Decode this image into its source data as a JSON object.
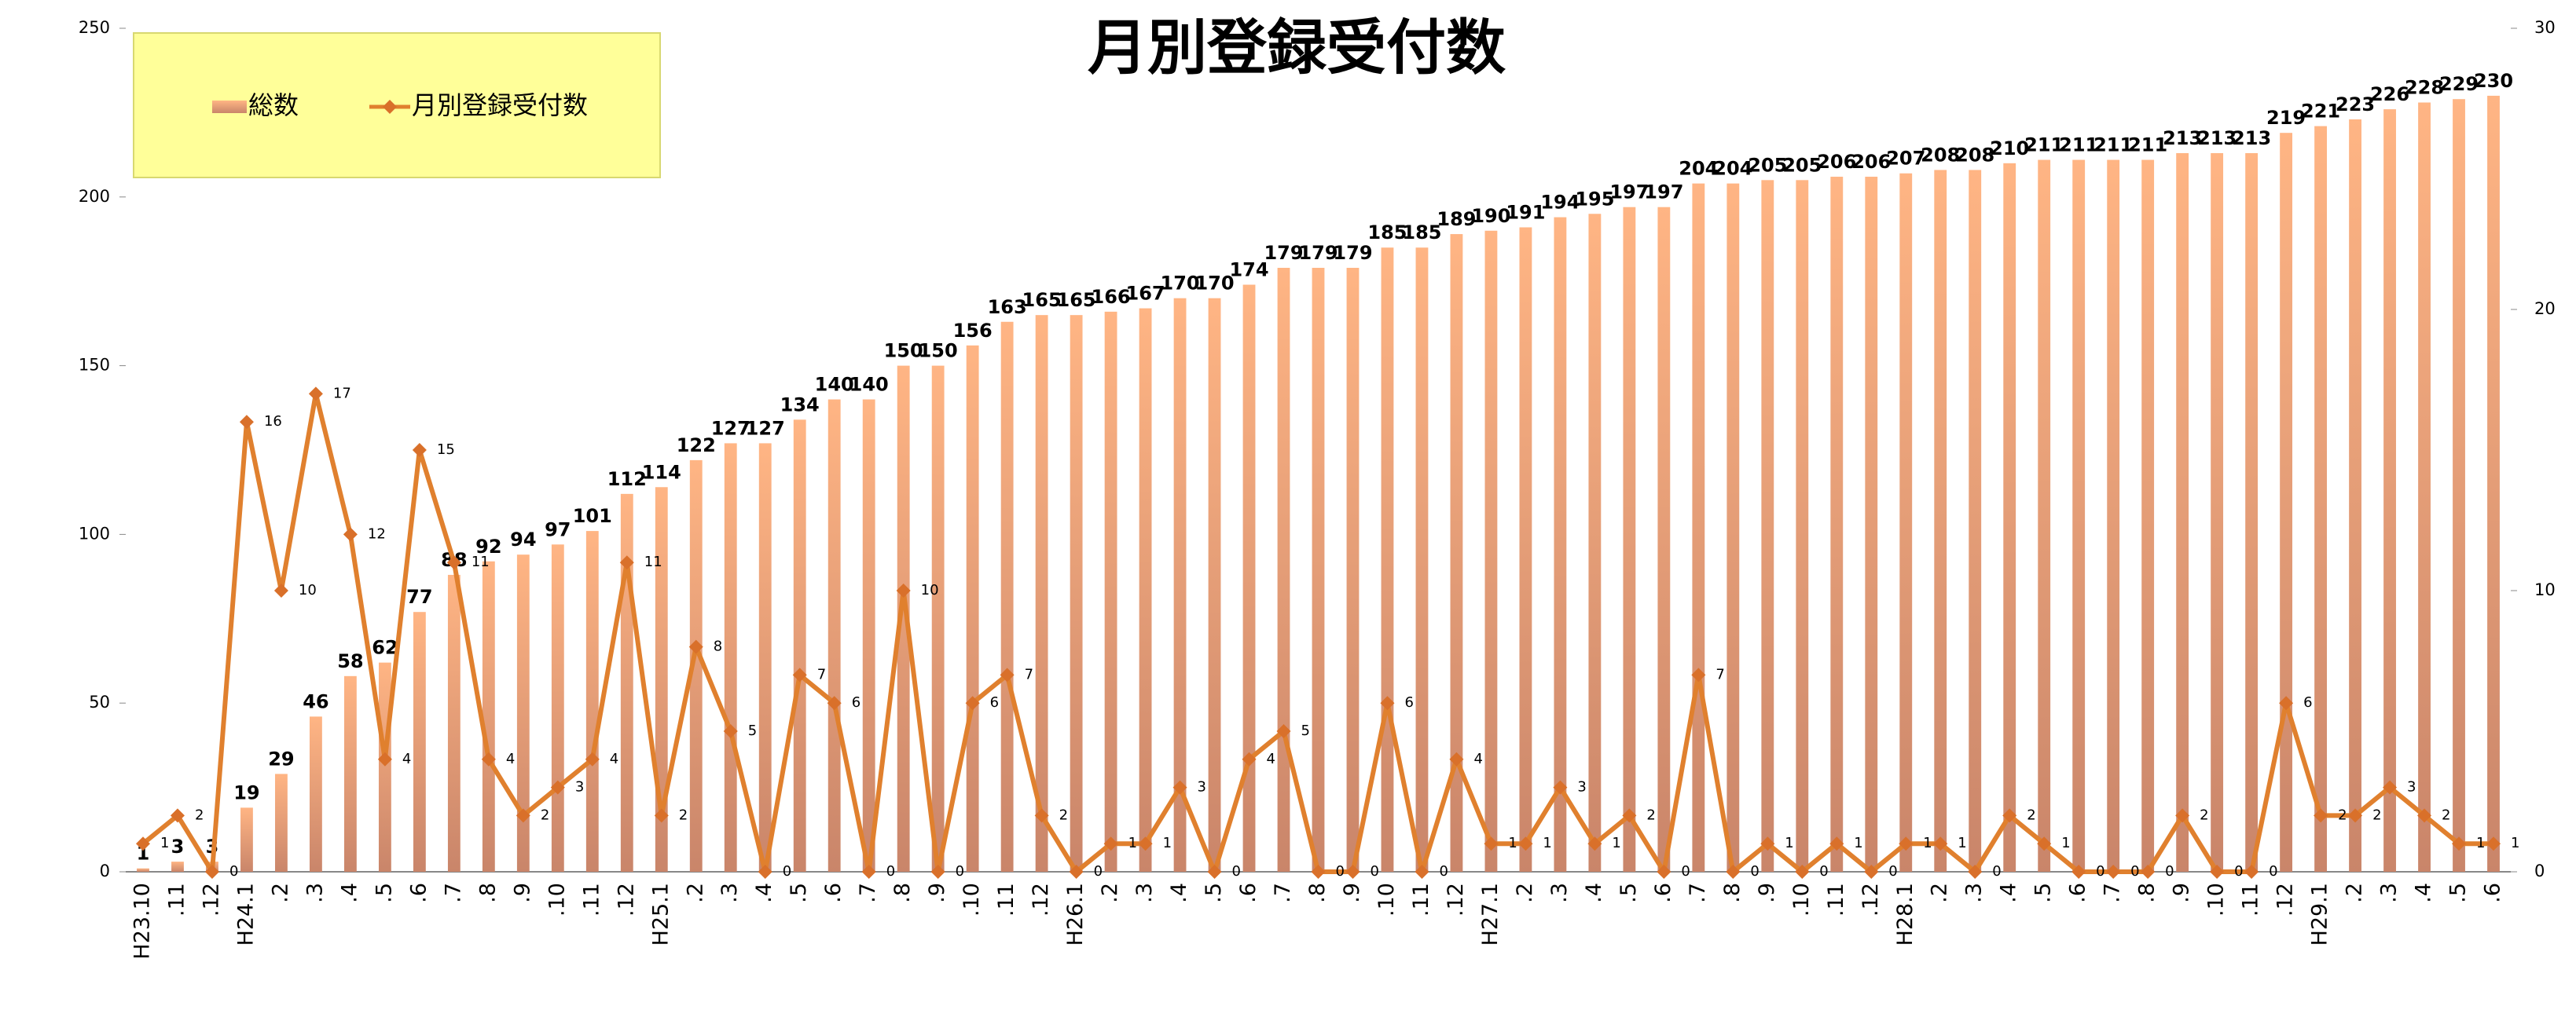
{
  "chart_data": {
    "type": "bar-line",
    "title": "月別登録受付数",
    "categories": [
      "H23.10",
      ".11",
      ".12",
      "H24.1",
      ".2",
      ".3",
      ".4",
      ".5",
      ".6",
      ".7",
      ".8",
      ".9",
      ".10",
      ".11",
      ".12",
      "H25.1",
      ".2",
      ".3",
      ".4",
      ".5",
      ".6",
      ".7",
      ".8",
      ".9",
      ".10",
      ".11",
      ".12",
      "H26.1",
      ".2",
      ".3",
      ".4",
      ".5",
      ".6",
      ".7",
      ".8",
      ".9",
      ".10",
      ".11",
      ".12",
      "H27.1",
      ".2",
      ".3",
      ".4",
      ".5",
      ".6",
      ".7",
      ".8",
      ".9",
      ".10",
      ".11",
      ".12",
      "H28.1",
      ".2",
      ".3",
      ".4",
      ".5",
      ".6",
      ".7",
      ".8",
      ".9",
      ".10",
      ".11",
      ".12",
      "H29.1",
      ".2",
      ".3",
      ".4",
      ".5",
      ".6"
    ],
    "series": [
      {
        "name": "総数",
        "type": "bar",
        "color": "#f7a878",
        "values": [
          1,
          3,
          3,
          19,
          29,
          46,
          58,
          62,
          77,
          88,
          92,
          94,
          97,
          101,
          112,
          114,
          122,
          127,
          127,
          134,
          140,
          140,
          150,
          150,
          156,
          163,
          165,
          165,
          166,
          167,
          170,
          170,
          174,
          179,
          179,
          179,
          185,
          185,
          189,
          190,
          191,
          194,
          195,
          197,
          197,
          204,
          204,
          205,
          205,
          206,
          206,
          207,
          208,
          208,
          210,
          211,
          211,
          211,
          211,
          213,
          213,
          213,
          219,
          221,
          223,
          226,
          228,
          229,
          230
        ]
      },
      {
        "name": "月別登録受付数",
        "type": "line",
        "axis": "y2",
        "color": "#e0802e",
        "values": [
          1,
          2,
          0,
          16,
          10,
          17,
          12,
          4,
          15,
          11,
          4,
          2,
          3,
          4,
          11,
          2,
          8,
          5,
          0,
          7,
          6,
          0,
          10,
          0,
          6,
          7,
          2,
          0,
          1,
          1,
          3,
          0,
          4,
          5,
          0,
          0,
          6,
          0,
          4,
          1,
          1,
          3,
          1,
          2,
          0,
          7,
          0,
          1,
          0,
          1,
          0,
          1,
          1,
          0,
          2,
          1,
          0,
          0,
          0,
          2,
          0,
          0,
          6,
          2,
          2,
          3,
          2,
          1,
          1
        ]
      }
    ],
    "ylim": [
      0,
      250
    ],
    "yticks": [
      0,
      50,
      100,
      150,
      200,
      250
    ],
    "y2lim": [
      0,
      30
    ],
    "y2ticks": [
      0,
      10,
      20,
      30
    ],
    "grid": false,
    "legend": "top-left"
  }
}
